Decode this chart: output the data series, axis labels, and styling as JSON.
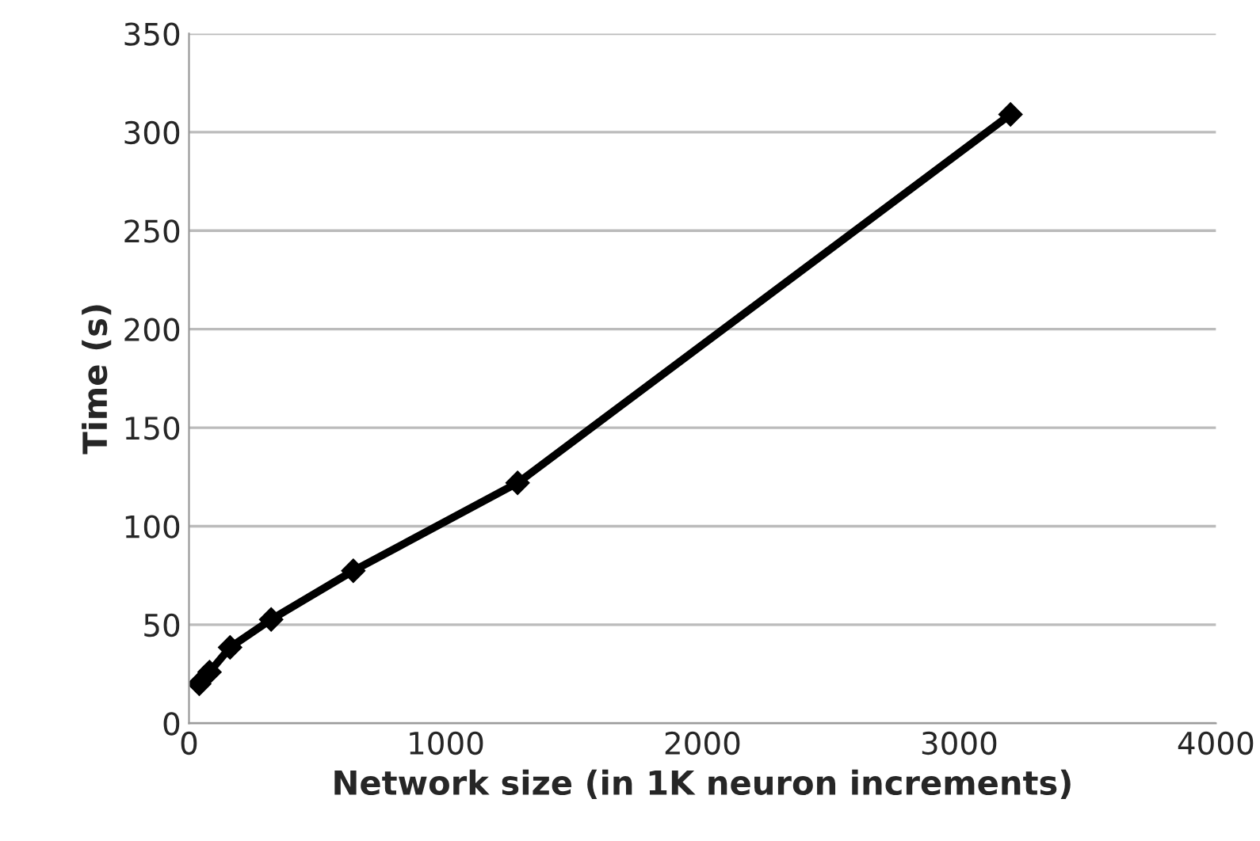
{
  "chart_data": {
    "type": "line",
    "xlabel": "Network size (in 1K neuron increments)",
    "ylabel": "Time (s)",
    "series": [
      {
        "color": "#000000",
        "x": [
          40,
          80,
          160,
          320,
          640,
          1280,
          3200
        ],
        "values": [
          20,
          26,
          38.5,
          52.7,
          77.4,
          122,
          309
        ]
      }
    ],
    "xlim": [
      0,
      4000
    ],
    "xticks": [
      0,
      1000,
      2000,
      3000,
      4000
    ],
    "ylim": [
      0,
      350
    ],
    "yticks": [
      0,
      50,
      100,
      150,
      200,
      250,
      300,
      350
    ],
    "grid": "y",
    "marker": "diamond",
    "line_style": "solid"
  }
}
